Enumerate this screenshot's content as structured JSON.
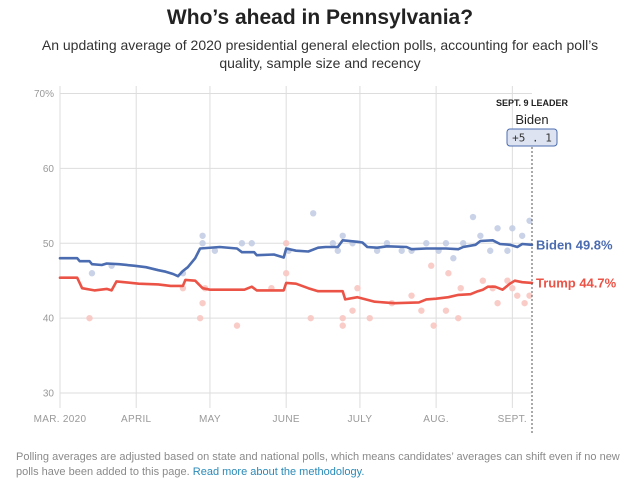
{
  "header": {
    "title": "Who’s ahead in Pennsylvania?",
    "subtitle": "An updating average of 2020 presidential general election polls, accounting for each poll’s quality, sample size and recency"
  },
  "leader_box": {
    "heading": "SEPT. 9 LEADER",
    "name": "Biden",
    "margin": "+5 . 1"
  },
  "footer": {
    "text": "Polling averages are adjusted based on state and national polls, which means candidates’ averages can shift even if no new polls have been added to this page.",
    "link_text": "Read more about the methodology."
  },
  "colors": {
    "biden": "#4b6cb0",
    "trump": "#ec5347",
    "biden_dot": "#c3cde4",
    "trump_dot": "#f8c7c2",
    "grid": "#dddddd"
  },
  "chart_data": {
    "type": "line",
    "x_axis": {
      "start": "2020-03-01",
      "end": "2020-09-09",
      "ticks": [
        {
          "date": "2020-03-01",
          "label": "MAR. 2020"
        },
        {
          "date": "2020-04-01",
          "label": "APRIL"
        },
        {
          "date": "2020-05-01",
          "label": "MAY"
        },
        {
          "date": "2020-06-01",
          "label": "JUNE"
        },
        {
          "date": "2020-07-01",
          "label": "JULY"
        },
        {
          "date": "2020-08-01",
          "label": "AUG."
        },
        {
          "date": "2020-09-01",
          "label": "SEPT."
        }
      ]
    },
    "y_axis": {
      "ylim": [
        28,
        71
      ],
      "ticks": [
        {
          "value": 70,
          "label": "70%"
        },
        {
          "value": 60,
          "label": "60"
        },
        {
          "value": 50,
          "label": "50"
        },
        {
          "value": 40,
          "label": "40"
        },
        {
          "value": 30,
          "label": "30"
        }
      ]
    },
    "grid": true,
    "series": [
      {
        "name": "Biden",
        "end_label": "Biden 49.8%",
        "points": [
          [
            "2020-03-01",
            48.0
          ],
          [
            "2020-03-08",
            48.0
          ],
          [
            "2020-03-09",
            47.6
          ],
          [
            "2020-03-13",
            47.6
          ],
          [
            "2020-03-14",
            47.2
          ],
          [
            "2020-03-18",
            47.1
          ],
          [
            "2020-03-20",
            47.3
          ],
          [
            "2020-03-25",
            47.2
          ],
          [
            "2020-03-31",
            47.0
          ],
          [
            "2020-04-05",
            46.8
          ],
          [
            "2020-04-10",
            46.4
          ],
          [
            "2020-04-13",
            46.2
          ],
          [
            "2020-04-16",
            45.9
          ],
          [
            "2020-04-18",
            45.6
          ],
          [
            "2020-04-20",
            46.3
          ],
          [
            "2020-04-22",
            46.8
          ],
          [
            "2020-04-25",
            48.0
          ],
          [
            "2020-04-27",
            49.3
          ],
          [
            "2020-05-05",
            49.5
          ],
          [
            "2020-05-12",
            49.3
          ],
          [
            "2020-05-14",
            48.8
          ],
          [
            "2020-05-19",
            48.8
          ],
          [
            "2020-05-20",
            48.4
          ],
          [
            "2020-05-27",
            48.5
          ],
          [
            "2020-05-31",
            48.1
          ],
          [
            "2020-06-01",
            49.3
          ],
          [
            "2020-06-05",
            49.0
          ],
          [
            "2020-06-10",
            48.9
          ],
          [
            "2020-06-14",
            49.4
          ],
          [
            "2020-06-17",
            49.5
          ],
          [
            "2020-06-22",
            49.5
          ],
          [
            "2020-06-24",
            50.4
          ],
          [
            "2020-06-30",
            50.2
          ],
          [
            "2020-07-02",
            50.1
          ],
          [
            "2020-07-04",
            49.5
          ],
          [
            "2020-07-08",
            49.4
          ],
          [
            "2020-07-12",
            49.6
          ],
          [
            "2020-07-20",
            49.5
          ],
          [
            "2020-07-22",
            49.2
          ],
          [
            "2020-07-28",
            49.3
          ],
          [
            "2020-08-05",
            49.3
          ],
          [
            "2020-08-10",
            49.2
          ],
          [
            "2020-08-12",
            49.5
          ],
          [
            "2020-08-17",
            49.8
          ],
          [
            "2020-08-19",
            50.3
          ],
          [
            "2020-08-24",
            50.4
          ],
          [
            "2020-08-27",
            49.9
          ],
          [
            "2020-08-31",
            49.8
          ],
          [
            "2020-09-03",
            49.5
          ],
          [
            "2020-09-05",
            49.9
          ],
          [
            "2020-09-09",
            49.8
          ]
        ]
      },
      {
        "name": "Trump",
        "end_label": "Trump 44.7%",
        "points": [
          [
            "2020-03-01",
            45.4
          ],
          [
            "2020-03-08",
            45.4
          ],
          [
            "2020-03-10",
            44.0
          ],
          [
            "2020-03-15",
            43.7
          ],
          [
            "2020-03-20",
            43.9
          ],
          [
            "2020-03-22",
            43.7
          ],
          [
            "2020-03-24",
            44.9
          ],
          [
            "2020-04-02",
            44.6
          ],
          [
            "2020-04-10",
            44.5
          ],
          [
            "2020-04-15",
            44.3
          ],
          [
            "2020-04-20",
            44.3
          ],
          [
            "2020-04-21",
            45.1
          ],
          [
            "2020-04-25",
            45.0
          ],
          [
            "2020-04-28",
            44.0
          ],
          [
            "2020-05-01",
            43.8
          ],
          [
            "2020-05-15",
            43.8
          ],
          [
            "2020-05-18",
            44.2
          ],
          [
            "2020-05-20",
            43.7
          ],
          [
            "2020-05-31",
            43.7
          ],
          [
            "2020-06-01",
            44.7
          ],
          [
            "2020-06-05",
            44.6
          ],
          [
            "2020-06-10",
            44.0
          ],
          [
            "2020-06-14",
            43.6
          ],
          [
            "2020-06-24",
            43.6
          ],
          [
            "2020-06-25",
            42.5
          ],
          [
            "2020-06-30",
            42.8
          ],
          [
            "2020-07-07",
            42.2
          ],
          [
            "2020-07-15",
            42.0
          ],
          [
            "2020-07-25",
            42.1
          ],
          [
            "2020-07-28",
            42.5
          ],
          [
            "2020-08-01",
            42.6
          ],
          [
            "2020-08-06",
            42.8
          ],
          [
            "2020-08-10",
            43.1
          ],
          [
            "2020-08-15",
            43.2
          ],
          [
            "2020-08-18",
            43.6
          ],
          [
            "2020-08-20",
            43.8
          ],
          [
            "2020-08-22",
            44.2
          ],
          [
            "2020-08-25",
            44.2
          ],
          [
            "2020-08-28",
            43.8
          ],
          [
            "2020-08-31",
            44.6
          ],
          [
            "2020-09-02",
            45.0
          ],
          [
            "2020-09-05",
            44.8
          ],
          [
            "2020-09-09",
            44.7
          ]
        ]
      }
    ],
    "polls": {
      "biden": [
        [
          "2020-03-14",
          46.0
        ],
        [
          "2020-03-22",
          47.0
        ],
        [
          "2020-04-20",
          46.0
        ],
        [
          "2020-04-28",
          50.0
        ],
        [
          "2020-04-28",
          51.0
        ],
        [
          "2020-05-03",
          49.0
        ],
        [
          "2020-05-14",
          50.0
        ],
        [
          "2020-05-18",
          50.0
        ],
        [
          "2020-06-02",
          49.0
        ],
        [
          "2020-06-12",
          54.0
        ],
        [
          "2020-06-20",
          50.0
        ],
        [
          "2020-06-22",
          49.0
        ],
        [
          "2020-06-24",
          51.0
        ],
        [
          "2020-06-28",
          50.0
        ],
        [
          "2020-07-08",
          49.0
        ],
        [
          "2020-07-12",
          50.0
        ],
        [
          "2020-07-18",
          49.0
        ],
        [
          "2020-07-22",
          49.0
        ],
        [
          "2020-07-28",
          50.0
        ],
        [
          "2020-08-02",
          49.0
        ],
        [
          "2020-08-05",
          50.0
        ],
        [
          "2020-08-08",
          48.0
        ],
        [
          "2020-08-12",
          50.0
        ],
        [
          "2020-08-16",
          53.5
        ],
        [
          "2020-08-19",
          51.0
        ],
        [
          "2020-08-23",
          49.0
        ],
        [
          "2020-08-26",
          52.0
        ],
        [
          "2020-08-30",
          49.0
        ],
        [
          "2020-09-01",
          52.0
        ],
        [
          "2020-09-05",
          51.0
        ],
        [
          "2020-09-08",
          53.0
        ]
      ],
      "trump": [
        [
          "2020-03-13",
          40.0
        ],
        [
          "2020-04-20",
          44.0
        ],
        [
          "2020-04-27",
          40.0
        ],
        [
          "2020-04-28",
          42.0
        ],
        [
          "2020-04-29",
          44.0
        ],
        [
          "2020-05-12",
          39.0
        ],
        [
          "2020-05-26",
          44.0
        ],
        [
          "2020-06-01",
          46.0
        ],
        [
          "2020-06-01",
          50.0
        ],
        [
          "2020-06-11",
          40.0
        ],
        [
          "2020-06-24",
          39.0
        ],
        [
          "2020-06-24",
          40.0
        ],
        [
          "2020-06-28",
          41.0
        ],
        [
          "2020-06-30",
          44.0
        ],
        [
          "2020-07-05",
          40.0
        ],
        [
          "2020-07-14",
          42.0
        ],
        [
          "2020-07-22",
          43.0
        ],
        [
          "2020-07-26",
          41.0
        ],
        [
          "2020-07-30",
          47.0
        ],
        [
          "2020-07-31",
          39.0
        ],
        [
          "2020-08-05",
          41.0
        ],
        [
          "2020-08-06",
          46.0
        ],
        [
          "2020-08-10",
          40.0
        ],
        [
          "2020-08-11",
          44.0
        ],
        [
          "2020-08-20",
          45.0
        ],
        [
          "2020-08-24",
          44.0
        ],
        [
          "2020-08-26",
          42.0
        ],
        [
          "2020-08-30",
          45.0
        ],
        [
          "2020-09-01",
          44.0
        ],
        [
          "2020-09-03",
          43.0
        ],
        [
          "2020-09-06",
          42.0
        ],
        [
          "2020-09-08",
          43.0
        ]
      ]
    }
  }
}
